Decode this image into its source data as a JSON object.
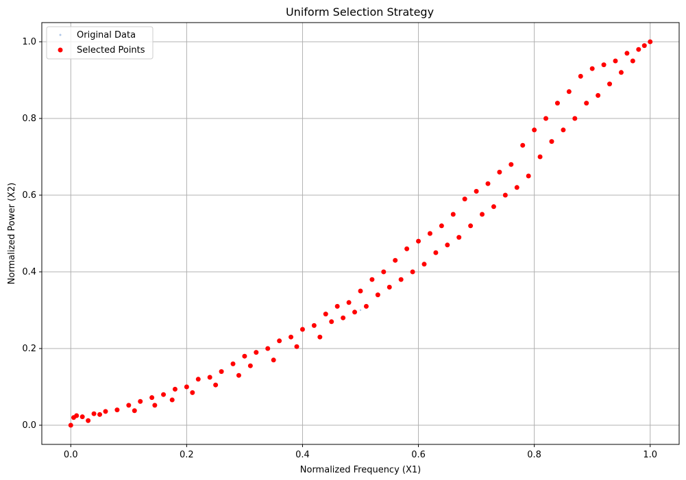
{
  "chart_data": {
    "type": "scatter",
    "title": "Uniform Selection Strategy",
    "xlabel": "Normalized Frequency (X1)",
    "ylabel": "Normalized Power (X2)",
    "xlim": [
      -0.05,
      1.05
    ],
    "ylim": [
      -0.05,
      1.05
    ],
    "xticks": [
      "0.0",
      "0.2",
      "0.4",
      "0.6",
      "0.8",
      "1.0"
    ],
    "yticks": [
      "0.0",
      "0.2",
      "0.4",
      "0.6",
      "0.8",
      "1.0"
    ],
    "grid": true,
    "legend_position": "top-left",
    "series": [
      {
        "name": "Original Data",
        "color": "#aec7e8",
        "marker": "small-dot",
        "points": [
          [
            0.0,
            0.0
          ],
          [
            0.5,
            0.3
          ],
          [
            1.0,
            1.0
          ]
        ]
      },
      {
        "name": "Selected Points",
        "color": "#ff0000",
        "marker": "circle",
        "points": [
          [
            0.0,
            0.0
          ],
          [
            0.005,
            0.02
          ],
          [
            0.01,
            0.025
          ],
          [
            0.02,
            0.022
          ],
          [
            0.03,
            0.012
          ],
          [
            0.04,
            0.03
          ],
          [
            0.05,
            0.028
          ],
          [
            0.06,
            0.036
          ],
          [
            0.08,
            0.04
          ],
          [
            0.1,
            0.052
          ],
          [
            0.11,
            0.038
          ],
          [
            0.12,
            0.062
          ],
          [
            0.14,
            0.072
          ],
          [
            0.145,
            0.052
          ],
          [
            0.16,
            0.08
          ],
          [
            0.175,
            0.066
          ],
          [
            0.18,
            0.094
          ],
          [
            0.2,
            0.1
          ],
          [
            0.21,
            0.085
          ],
          [
            0.22,
            0.12
          ],
          [
            0.24,
            0.125
          ],
          [
            0.25,
            0.105
          ],
          [
            0.26,
            0.14
          ],
          [
            0.28,
            0.16
          ],
          [
            0.29,
            0.13
          ],
          [
            0.3,
            0.18
          ],
          [
            0.31,
            0.155
          ],
          [
            0.32,
            0.19
          ],
          [
            0.34,
            0.2
          ],
          [
            0.35,
            0.17
          ],
          [
            0.36,
            0.22
          ],
          [
            0.38,
            0.23
          ],
          [
            0.39,
            0.205
          ],
          [
            0.4,
            0.25
          ],
          [
            0.42,
            0.26
          ],
          [
            0.43,
            0.23
          ],
          [
            0.44,
            0.29
          ],
          [
            0.45,
            0.27
          ],
          [
            0.46,
            0.31
          ],
          [
            0.47,
            0.28
          ],
          [
            0.48,
            0.32
          ],
          [
            0.49,
            0.295
          ],
          [
            0.5,
            0.35
          ],
          [
            0.51,
            0.31
          ],
          [
            0.52,
            0.38
          ],
          [
            0.53,
            0.34
          ],
          [
            0.54,
            0.4
          ],
          [
            0.55,
            0.36
          ],
          [
            0.56,
            0.43
          ],
          [
            0.57,
            0.38
          ],
          [
            0.58,
            0.46
          ],
          [
            0.59,
            0.4
          ],
          [
            0.6,
            0.48
          ],
          [
            0.61,
            0.42
          ],
          [
            0.62,
            0.5
          ],
          [
            0.63,
            0.45
          ],
          [
            0.64,
            0.52
          ],
          [
            0.65,
            0.47
          ],
          [
            0.66,
            0.55
          ],
          [
            0.67,
            0.49
          ],
          [
            0.68,
            0.59
          ],
          [
            0.69,
            0.52
          ],
          [
            0.7,
            0.61
          ],
          [
            0.71,
            0.55
          ],
          [
            0.72,
            0.63
          ],
          [
            0.73,
            0.57
          ],
          [
            0.74,
            0.66
          ],
          [
            0.75,
            0.6
          ],
          [
            0.76,
            0.68
          ],
          [
            0.77,
            0.62
          ],
          [
            0.78,
            0.73
          ],
          [
            0.79,
            0.65
          ],
          [
            0.8,
            0.77
          ],
          [
            0.81,
            0.7
          ],
          [
            0.82,
            0.8
          ],
          [
            0.83,
            0.74
          ],
          [
            0.84,
            0.84
          ],
          [
            0.85,
            0.77
          ],
          [
            0.86,
            0.87
          ],
          [
            0.87,
            0.8
          ],
          [
            0.88,
            0.91
          ],
          [
            0.89,
            0.84
          ],
          [
            0.9,
            0.93
          ],
          [
            0.91,
            0.86
          ],
          [
            0.92,
            0.94
          ],
          [
            0.93,
            0.89
          ],
          [
            0.94,
            0.95
          ],
          [
            0.95,
            0.92
          ],
          [
            0.96,
            0.97
          ],
          [
            0.97,
            0.95
          ],
          [
            0.98,
            0.98
          ],
          [
            0.99,
            0.99
          ],
          [
            1.0,
            1.0
          ]
        ]
      }
    ]
  }
}
